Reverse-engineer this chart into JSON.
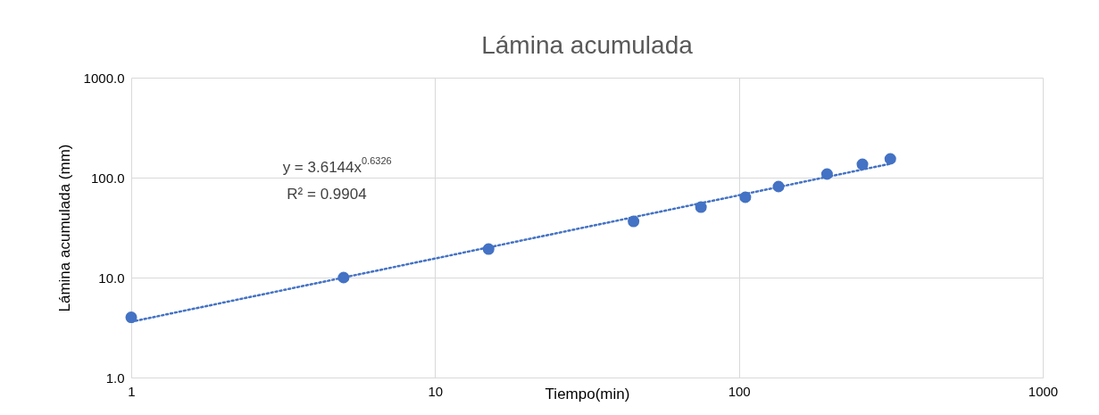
{
  "chart_data": {
    "type": "scatter",
    "title": "Lámina acumulada",
    "xlabel": "Tiempo(min)",
    "ylabel": "Lámina acumulada (mm)",
    "log": "xy",
    "grid": true,
    "xlim": [
      1,
      1000
    ],
    "xticks": [
      1,
      10,
      100,
      1000
    ],
    "ylim": [
      1,
      1000
    ],
    "yticks": [
      {
        "value": 1,
        "label": "1.0"
      },
      {
        "value": 10,
        "label": "10.0"
      },
      {
        "value": 100,
        "label": "100.0"
      },
      {
        "value": 1000,
        "label": "1000.0"
      }
    ],
    "series": [
      {
        "marker": "circle",
        "color": "#4472c4",
        "x": [
          1,
          5,
          15,
          45,
          75,
          105,
          135,
          195,
          255,
          315
        ],
        "values": [
          4,
          10,
          19.3,
          36.5,
          50.7,
          63.6,
          81.4,
          108.6,
          136,
          154
        ]
      },
      {
        "type": "line",
        "color": "#4472c4",
        "line_style": "dotted",
        "x": [
          1,
          315
        ],
        "values": [
          3.6144,
          137.6
        ]
      }
    ],
    "annotations": [
      "y = 3.6144x$^{0.6326}$",
      "R² = 0.9904"
    ]
  }
}
